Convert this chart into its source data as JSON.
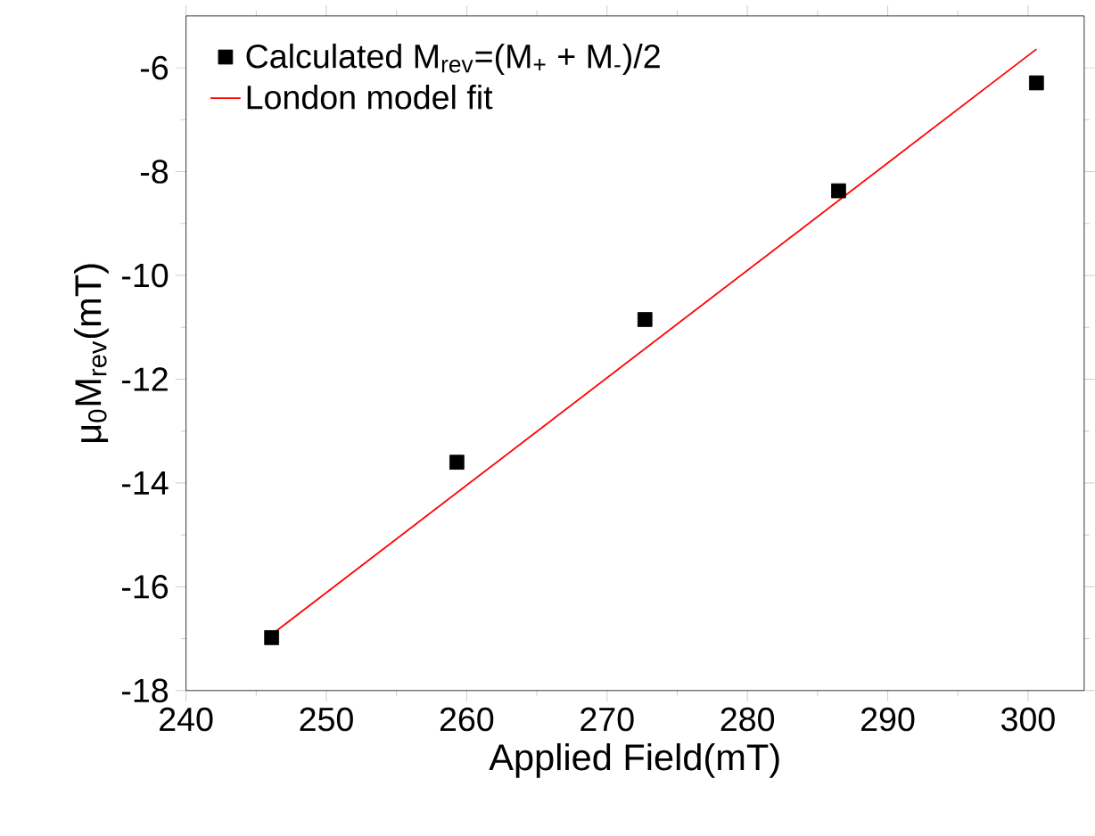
{
  "chart_data": {
    "type": "scatter",
    "xlabel": "Applied Field(mT)",
    "ylabel": "μ$_{0}$M$_{rev}$(mT)",
    "xlim": [
      240,
      304
    ],
    "ylim": [
      -18,
      -5
    ],
    "xticks": [
      240,
      250,
      260,
      270,
      280,
      290,
      300
    ],
    "yticks": [
      -18,
      -16,
      -14,
      -12,
      -10,
      -8,
      -6
    ],
    "legend": "top left",
    "grid": false,
    "marker": "square",
    "series": [
      {
        "name": "Calculated M$_{rev}$=(M$_{+}$ + M$_{-}$)/2",
        "color": "#000000",
        "x": [
          246.1,
          259.3,
          272.7,
          286.5,
          300.6
        ],
        "values": [
          -16.98,
          -13.6,
          -10.85,
          -8.37,
          -6.29
        ]
      },
      {
        "name": "London model fit",
        "type": "line",
        "color": "#ff0000",
        "marker": "none",
        "line_style": "solid",
        "x": [
          246.2,
          300.6
        ],
        "values": [
          -16.9,
          -5.64
        ]
      }
    ]
  }
}
